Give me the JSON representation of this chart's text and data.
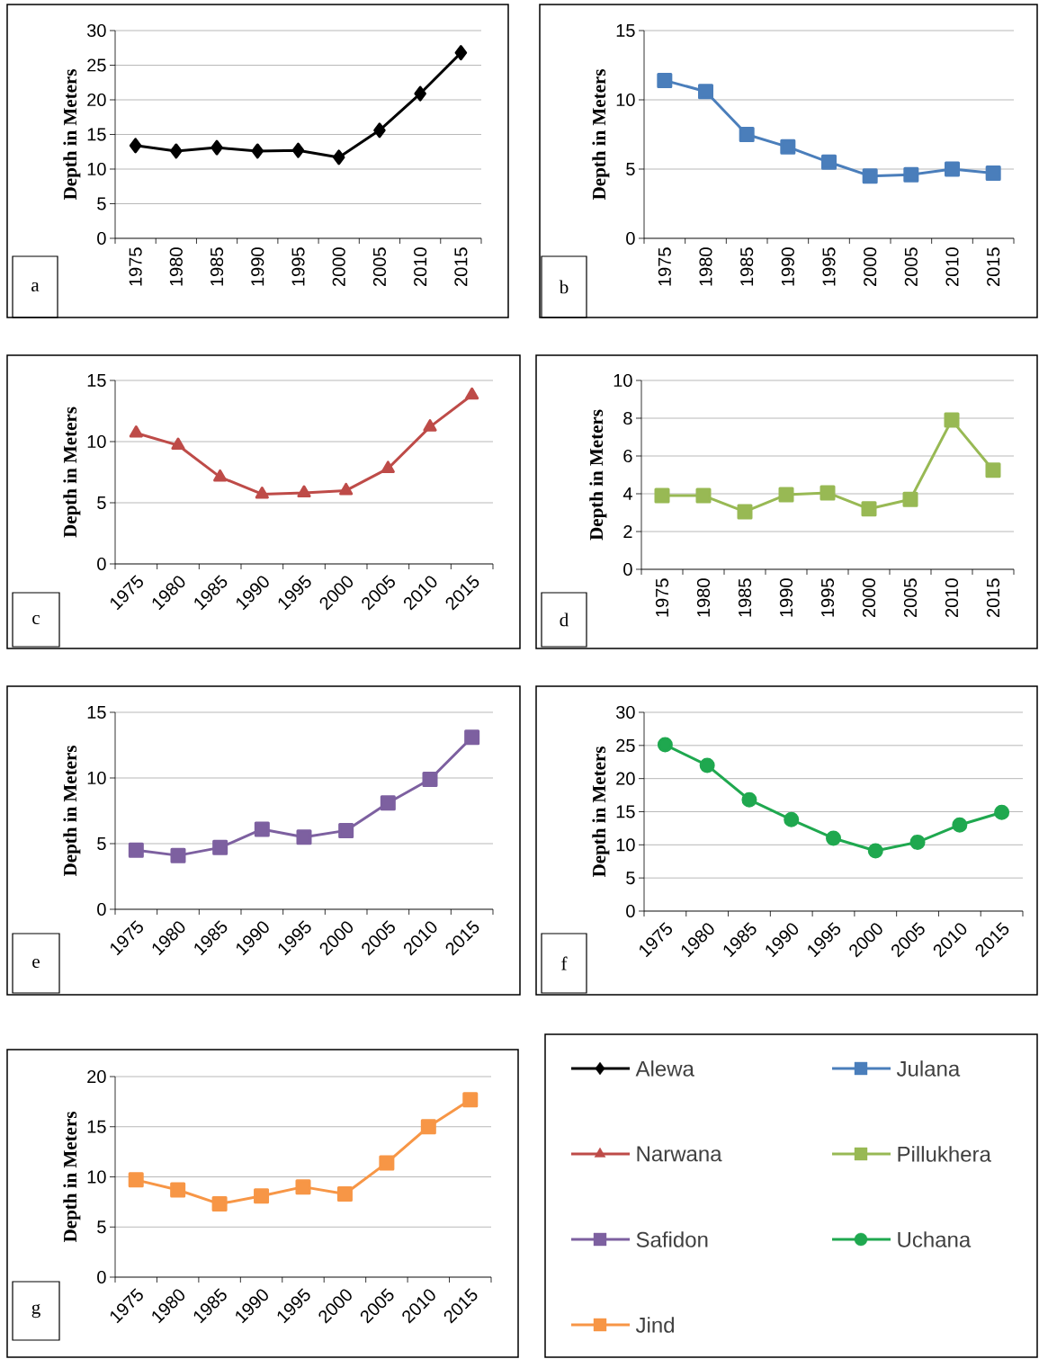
{
  "chart_data": [
    {
      "type": "line",
      "categories": [
        "1975",
        "1980",
        "1985",
        "1990",
        "1995",
        "2000",
        "2005",
        "2010",
        "2015"
      ],
      "ylabel": "Depth in Meters",
      "ylim": [
        0,
        30
      ],
      "yticks": [
        0,
        5,
        10,
        15,
        20,
        25,
        30
      ],
      "grid": "y",
      "marker": "diamond",
      "annotations": [
        "a"
      ],
      "series": [
        {
          "name": "Alewa",
          "color": "#000000",
          "values": [
            13.4,
            12.6,
            13.1,
            12.6,
            12.7,
            11.7,
            15.6,
            20.9,
            26.8
          ]
        }
      ]
    },
    {
      "type": "line",
      "categories": [
        "1975",
        "1980",
        "1985",
        "1990",
        "1995",
        "2000",
        "2005",
        "2010",
        "2015"
      ],
      "ylabel": "Depth in Meters",
      "ylim": [
        0,
        15
      ],
      "yticks": [
        0,
        5,
        10,
        15
      ],
      "grid": "y",
      "marker": "square",
      "annotations": [
        "b"
      ],
      "series": [
        {
          "name": "Julana",
          "color": "#4a7ebb",
          "values": [
            11.4,
            10.6,
            7.5,
            6.6,
            5.5,
            4.5,
            4.6,
            5.0,
            4.7
          ]
        }
      ]
    },
    {
      "type": "line",
      "categories": [
        "1975",
        "1980",
        "1985",
        "1990",
        "1995",
        "2000",
        "2005",
        "2010",
        "2015"
      ],
      "ylabel": "Depth in Meters",
      "ylim": [
        0,
        15
      ],
      "yticks": [
        0,
        5,
        10,
        15
      ],
      "grid": "y",
      "marker": "triangle",
      "annotations": [
        "c"
      ],
      "series": [
        {
          "name": "Narwana",
          "color": "#be4b48",
          "values": [
            10.7,
            9.7,
            7.1,
            5.7,
            5.8,
            6.0,
            7.8,
            11.2,
            13.8
          ]
        }
      ]
    },
    {
      "type": "line",
      "categories": [
        "1975",
        "1980",
        "1985",
        "1990",
        "1995",
        "2000",
        "2005",
        "2010",
        "2015"
      ],
      "ylabel": "Depth in Meters",
      "ylim": [
        0,
        10
      ],
      "yticks": [
        0,
        2,
        4,
        6,
        8,
        10
      ],
      "grid": "y",
      "marker": "square",
      "annotations": [
        "d"
      ],
      "series": [
        {
          "name": "Pillukhera",
          "color": "#98b954",
          "values": [
            3.9,
            3.9,
            3.05,
            3.95,
            4.05,
            3.2,
            3.7,
            7.9,
            5.25
          ]
        }
      ]
    },
    {
      "type": "line",
      "categories": [
        "1975",
        "1980",
        "1985",
        "1990",
        "1995",
        "2000",
        "2005",
        "2010",
        "2015"
      ],
      "ylabel": "Depth in Meters",
      "ylim": [
        0,
        15
      ],
      "yticks": [
        0,
        5,
        10,
        15
      ],
      "grid": "y",
      "marker": "square",
      "annotations": [
        "e"
      ],
      "series": [
        {
          "name": "Safidon",
          "color": "#7d60a0",
          "values": [
            4.5,
            4.1,
            4.7,
            6.1,
            5.5,
            6.0,
            8.1,
            9.9,
            13.1
          ]
        }
      ]
    },
    {
      "type": "line",
      "categories": [
        "1975",
        "1980",
        "1985",
        "1990",
        "1995",
        "2000",
        "2005",
        "2010",
        "2015"
      ],
      "ylabel": "Depth in Meters",
      "ylim": [
        0,
        30
      ],
      "yticks": [
        0,
        5,
        10,
        15,
        20,
        25,
        30
      ],
      "grid": "y",
      "marker": "circle",
      "annotations": [
        "f"
      ],
      "series": [
        {
          "name": "Uchana",
          "color": "#1fa84f",
          "values": [
            25.1,
            22.0,
            16.8,
            13.8,
            11.0,
            9.1,
            10.4,
            13.0,
            14.9
          ]
        }
      ]
    },
    {
      "type": "line",
      "categories": [
        "1975",
        "1980",
        "1985",
        "1990",
        "1995",
        "2000",
        "2005",
        "2010",
        "2015"
      ],
      "ylabel": "Depth in Meters",
      "ylim": [
        0,
        20
      ],
      "yticks": [
        0,
        5,
        10,
        15,
        20
      ],
      "grid": "y",
      "marker": "square",
      "annotations": [
        "g"
      ],
      "series": [
        {
          "name": "Jind",
          "color": "#f79646",
          "values": [
            9.7,
            8.7,
            7.3,
            8.1,
            9.0,
            8.3,
            11.4,
            15.0,
            17.7
          ]
        }
      ]
    }
  ]
}
